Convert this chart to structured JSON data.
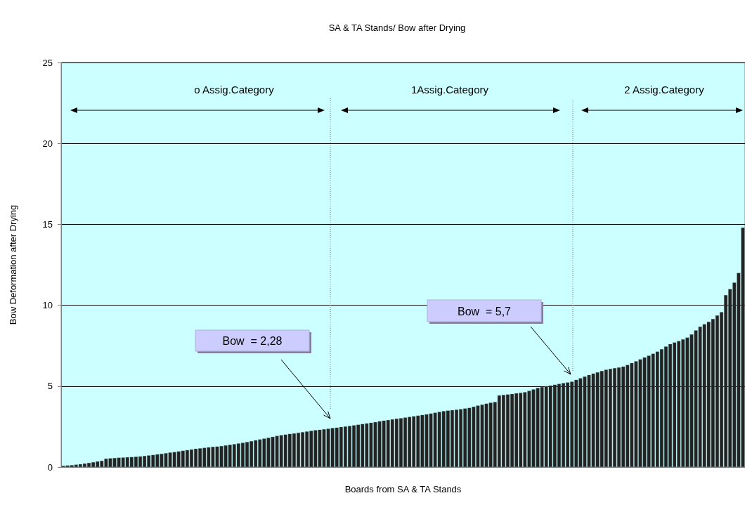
{
  "chart_data": {
    "type": "bar",
    "title": "SA & TA Stands/ Bow after Drying",
    "xlabel": "Boards from SA & TA Stands",
    "ylabel": "Bow Deformation after Drying",
    "categories": [
      null,
      null,
      null,
      null,
      null,
      null,
      null,
      null,
      null,
      null,
      null,
      null,
      null,
      null,
      null,
      null,
      null,
      null,
      null,
      null,
      null,
      null,
      null,
      null,
      null,
      null,
      null,
      null,
      null,
      null,
      null,
      null,
      null,
      null,
      null,
      null,
      null,
      null,
      null,
      null,
      null,
      null,
      null,
      null,
      null,
      null,
      null,
      null,
      null,
      null,
      null,
      null,
      null,
      null,
      null,
      null,
      null,
      null,
      null,
      null,
      null,
      null,
      null,
      null,
      null,
      null,
      null,
      null,
      null,
      null,
      null,
      null,
      null,
      null,
      null,
      null,
      null,
      null,
      null,
      null,
      null,
      null,
      null,
      null,
      null,
      null,
      null,
      null,
      null,
      null,
      null,
      null,
      null,
      null,
      null,
      null,
      null,
      null,
      null,
      null,
      null,
      null,
      null,
      null,
      null,
      null,
      null,
      null,
      null,
      null,
      null,
      null,
      null,
      null,
      null,
      null,
      null,
      null,
      null,
      null,
      null,
      null,
      null,
      null,
      null,
      null,
      null,
      null,
      null,
      null,
      null,
      null,
      null,
      null,
      null,
      null,
      null,
      null,
      null,
      null,
      null,
      null,
      null,
      null,
      null,
      null,
      null,
      null,
      null,
      null,
      null,
      null,
      null,
      null,
      null,
      null,
      null,
      null,
      null,
      null
    ],
    "values": [
      0.08,
      0.1,
      0.12,
      0.15,
      0.18,
      0.22,
      0.26,
      0.3,
      0.35,
      0.39,
      0.52,
      0.54,
      0.56,
      0.58,
      0.59,
      0.61,
      0.62,
      0.64,
      0.66,
      0.69,
      0.72,
      0.75,
      0.79,
      0.82,
      0.86,
      0.9,
      0.93,
      0.97,
      1.01,
      1.05,
      1.09,
      1.13,
      1.16,
      1.19,
      1.22,
      1.25,
      1.27,
      1.3,
      1.34,
      1.38,
      1.42,
      1.46,
      1.5,
      1.55,
      1.6,
      1.66,
      1.71,
      1.76,
      1.81,
      1.87,
      1.93,
      1.97,
      2.01,
      2.05,
      2.08,
      2.12,
      2.16,
      2.2,
      2.24,
      2.28,
      2.31,
      2.34,
      2.37,
      2.41,
      2.44,
      2.48,
      2.51,
      2.54,
      2.58,
      2.62,
      2.66,
      2.7,
      2.74,
      2.78,
      2.83,
      2.87,
      2.91,
      2.95,
      2.99,
      3.02,
      3.06,
      3.1,
      3.14,
      3.18,
      3.22,
      3.26,
      3.31,
      3.36,
      3.41,
      3.46,
      3.49,
      3.52,
      3.55,
      3.58,
      3.62,
      3.66,
      3.73,
      3.8,
      3.86,
      3.92,
      3.98,
      4.02,
      4.43,
      4.46,
      4.49,
      4.52,
      4.56,
      4.59,
      4.63,
      4.71,
      4.8,
      4.89,
      4.95,
      5.0,
      5.04,
      5.09,
      5.14,
      5.19,
      5.23,
      5.28,
      5.39,
      5.49,
      5.59,
      5.69,
      5.78,
      5.86,
      5.94,
      6.02,
      6.07,
      6.12,
      6.16,
      6.21,
      6.31,
      6.43,
      6.54,
      6.66,
      6.78,
      6.89,
      7.01,
      7.14,
      7.29,
      7.45,
      7.6,
      7.7,
      7.79,
      7.89,
      8.0,
      8.2,
      8.45,
      8.68,
      8.83,
      8.98,
      9.15,
      9.37,
      9.58,
      10.63,
      11.0,
      11.4,
      12.0,
      14.8
    ],
    "color": "#222222",
    "ylim": [
      0,
      25
    ],
    "yticks": [
      0,
      5,
      10,
      15,
      20,
      25
    ],
    "grid": "y",
    "annotations": [
      "o Assig.Category",
      "1Assig.Category",
      "2 Assig.Category",
      "Bow  = 2,28",
      "Bow  = 5,7"
    ]
  }
}
